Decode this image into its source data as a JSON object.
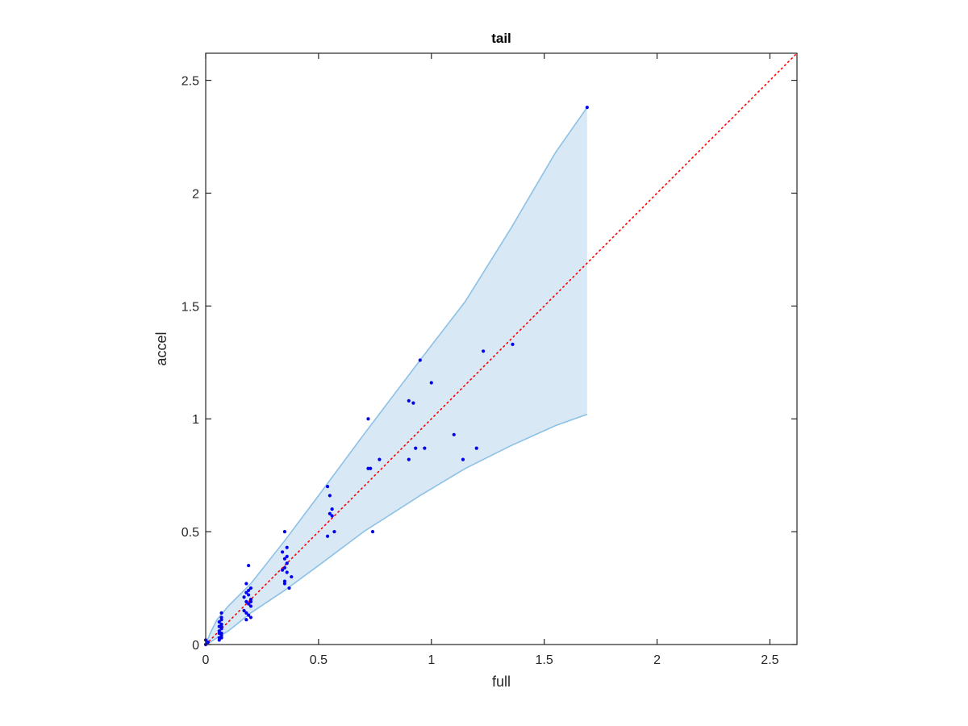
{
  "chart_data": {
    "type": "scatter",
    "title": "tail",
    "xlabel": "full",
    "ylabel": "accel",
    "xlim": [
      0,
      2.62
    ],
    "ylim": [
      0,
      2.62
    ],
    "xticks": [
      0,
      0.5,
      1,
      1.5,
      2,
      2.5
    ],
    "yticks": [
      0,
      0.5,
      1,
      1.5,
      2,
      2.5
    ],
    "xtick_labels": [
      "0",
      "0.5",
      "1",
      "1.5",
      "2",
      "2.5"
    ],
    "ytick_labels": [
      "0",
      "0.5",
      "1",
      "1.5",
      "2",
      "2.5"
    ],
    "grid": false,
    "colors": {
      "points": "#0000ee",
      "band_fill": "#d9e8f5",
      "band_edge": "#8cc1e6",
      "reference_line": "#ff0000",
      "axes": "#262626"
    },
    "reference_line": {
      "style": "dotted",
      "x": [
        0,
        2.62
      ],
      "y": [
        0,
        2.62
      ]
    },
    "band": {
      "x": [
        0.0,
        0.02,
        0.05,
        0.1,
        0.2,
        0.35,
        0.5,
        0.7,
        0.95,
        1.15,
        1.35,
        1.55,
        1.69
      ],
      "upper": [
        0.0,
        0.05,
        0.11,
        0.17,
        0.27,
        0.46,
        0.66,
        0.93,
        1.26,
        1.52,
        1.84,
        2.18,
        2.38
      ],
      "lower": [
        0.0,
        0.01,
        0.03,
        0.06,
        0.14,
        0.24,
        0.35,
        0.5,
        0.66,
        0.78,
        0.88,
        0.97,
        1.02
      ]
    },
    "points": {
      "x": [
        0.0,
        0.01,
        0.0,
        0.07,
        0.07,
        0.06,
        0.07,
        0.06,
        0.07,
        0.06,
        0.07,
        0.07,
        0.06,
        0.07,
        0.06,
        0.07,
        0.07,
        0.06,
        0.19,
        0.18,
        0.2,
        0.18,
        0.19,
        0.17,
        0.2,
        0.18,
        0.19,
        0.2,
        0.17,
        0.18,
        0.19,
        0.2,
        0.18,
        0.19,
        0.2,
        0.35,
        0.36,
        0.34,
        0.36,
        0.35,
        0.36,
        0.35,
        0.34,
        0.36,
        0.38,
        0.37,
        0.35,
        0.35,
        0.54,
        0.55,
        0.54,
        0.56,
        0.56,
        0.57,
        0.55,
        0.72,
        0.72,
        0.73,
        0.74,
        0.77,
        0.9,
        0.9,
        0.92,
        0.93,
        0.95,
        0.97,
        1.0,
        1.1,
        1.14,
        1.2,
        1.23,
        1.36,
        1.69
      ],
      "y": [
        0.0,
        0.01,
        0.02,
        0.14,
        0.12,
        0.1,
        0.09,
        0.08,
        0.07,
        0.06,
        0.05,
        0.04,
        0.03,
        0.03,
        0.02,
        0.11,
        0.08,
        0.05,
        0.35,
        0.27,
        0.25,
        0.23,
        0.22,
        0.21,
        0.2,
        0.19,
        0.18,
        0.17,
        0.15,
        0.14,
        0.13,
        0.12,
        0.11,
        0.24,
        0.19,
        0.5,
        0.43,
        0.41,
        0.39,
        0.38,
        0.36,
        0.34,
        0.33,
        0.32,
        0.3,
        0.25,
        0.28,
        0.27,
        0.7,
        0.66,
        0.48,
        0.6,
        0.57,
        0.5,
        0.58,
        1.0,
        0.78,
        0.78,
        0.5,
        0.82,
        1.08,
        0.82,
        1.07,
        0.87,
        1.26,
        0.87,
        1.16,
        0.93,
        0.82,
        0.87,
        1.3,
        1.33,
        2.38
      ]
    }
  }
}
